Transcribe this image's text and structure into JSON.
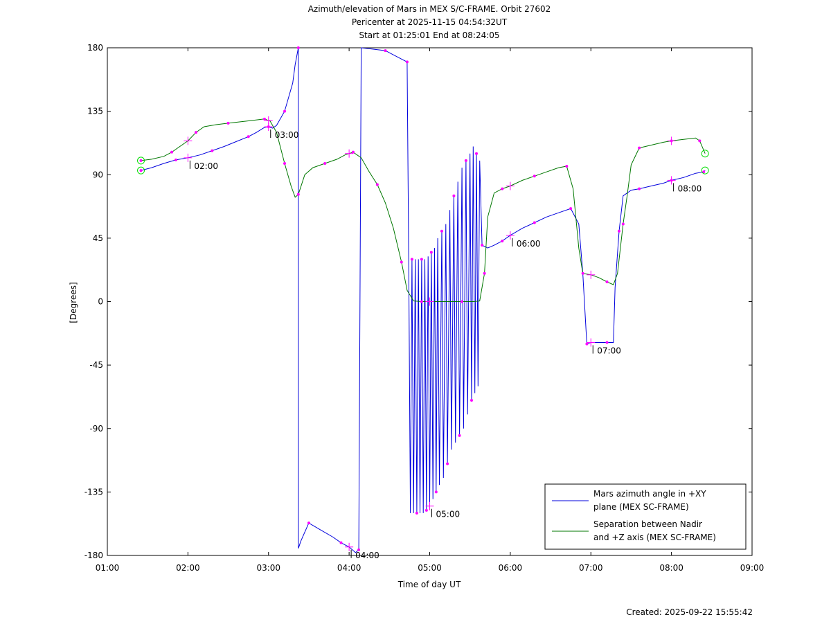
{
  "chart_data": {
    "type": "line",
    "title": [
      "Azimuth/elevation of Mars in MEX S/C-FRAME.  Orbit 27602",
      "Pericenter at 2025-11-15 04:54:32UT",
      "Start at 01:25:01 End at 08:24:05"
    ],
    "xlabel": "Time of day UT",
    "ylabel": "[Degrees]",
    "xlim": [
      1.0,
      9.0
    ],
    "ylim": [
      -180,
      180
    ],
    "x_ticks": [
      "01:00",
      "02:00",
      "03:00",
      "04:00",
      "05:00",
      "06:00",
      "07:00",
      "08:00",
      "09:00"
    ],
    "y_ticks": [
      "180",
      "135",
      "90",
      "45",
      "0",
      "-45",
      "-90",
      "-135",
      "-180"
    ],
    "legend_position": "bottom-right",
    "colors": {
      "azimuth": "#0000dd",
      "separation": "#007700",
      "markers": "#ff00ff",
      "endpoints": "#00dd00"
    },
    "series": [
      {
        "name": "Mars azimuth angle in +XY plane (MEX SC-FRAME)",
        "legend_lines": [
          "Mars azimuth angle in +XY",
          "plane (MEX SC-FRAME)"
        ],
        "points": [
          [
            1.417,
            93
          ],
          [
            1.55,
            95
          ],
          [
            1.7,
            98
          ],
          [
            1.85,
            100.5
          ],
          [
            2.0,
            102
          ],
          [
            2.15,
            104
          ],
          [
            2.3,
            107
          ],
          [
            2.45,
            110
          ],
          [
            2.6,
            113.5
          ],
          [
            2.75,
            117
          ],
          [
            2.85,
            120
          ],
          [
            2.95,
            123.5
          ],
          [
            3.0,
            124
          ],
          [
            3.05,
            123
          ],
          [
            3.1,
            125
          ],
          [
            3.2,
            135
          ],
          [
            3.3,
            155
          ],
          [
            3.33,
            168
          ],
          [
            3.37,
            180
          ],
          [
            3.371,
            -175
          ],
          [
            3.4,
            -170
          ],
          [
            3.5,
            -157
          ],
          [
            3.65,
            -162
          ],
          [
            3.8,
            -167
          ],
          [
            3.9,
            -171
          ],
          [
            4.0,
            -174
          ],
          [
            4.08,
            -178
          ],
          [
            4.12,
            -176
          ],
          [
            4.15,
            180
          ],
          [
            4.3,
            179
          ],
          [
            4.45,
            178
          ],
          [
            4.55,
            175
          ],
          [
            4.65,
            172
          ],
          [
            4.72,
            170
          ],
          [
            4.74,
            30
          ],
          [
            4.76,
            -150
          ],
          [
            4.78,
            30
          ],
          [
            4.8,
            -150
          ],
          [
            4.82,
            30
          ],
          [
            4.84,
            -150
          ],
          [
            4.86,
            30
          ],
          [
            4.88,
            -150
          ],
          [
            4.9,
            30
          ],
          [
            4.92,
            -150
          ],
          [
            4.94,
            30
          ],
          [
            4.96,
            -148
          ],
          [
            4.98,
            32
          ],
          [
            5.0,
            -145
          ],
          [
            5.02,
            35
          ],
          [
            5.04,
            -140
          ],
          [
            5.06,
            38
          ],
          [
            5.08,
            -135
          ],
          [
            5.1,
            45
          ],
          [
            5.12,
            -130
          ],
          [
            5.15,
            50
          ],
          [
            5.17,
            -125
          ],
          [
            5.2,
            55
          ],
          [
            5.22,
            -115
          ],
          [
            5.25,
            65
          ],
          [
            5.27,
            -105
          ],
          [
            5.3,
            75
          ],
          [
            5.32,
            -100
          ],
          [
            5.35,
            85
          ],
          [
            5.37,
            -95
          ],
          [
            5.4,
            95
          ],
          [
            5.42,
            -90
          ],
          [
            5.45,
            100
          ],
          [
            5.47,
            -80
          ],
          [
            5.5,
            105
          ],
          [
            5.52,
            -70
          ],
          [
            5.54,
            110
          ],
          [
            5.56,
            -65
          ],
          [
            5.58,
            105
          ],
          [
            5.6,
            -60
          ],
          [
            5.62,
            100
          ],
          [
            5.65,
            40
          ],
          [
            5.72,
            38
          ],
          [
            5.8,
            40
          ],
          [
            5.9,
            43
          ],
          [
            6.0,
            47
          ],
          [
            6.15,
            52
          ],
          [
            6.3,
            56
          ],
          [
            6.45,
            60
          ],
          [
            6.6,
            63
          ],
          [
            6.75,
            66
          ],
          [
            6.85,
            55
          ],
          [
            6.9,
            20
          ],
          [
            6.95,
            -30
          ],
          [
            7.0,
            -29
          ],
          [
            7.1,
            -29
          ],
          [
            7.2,
            -29
          ],
          [
            7.28,
            -29
          ],
          [
            7.3,
            10
          ],
          [
            7.35,
            50
          ],
          [
            7.4,
            75
          ],
          [
            7.5,
            79
          ],
          [
            7.6,
            80
          ],
          [
            7.75,
            82
          ],
          [
            7.9,
            84
          ],
          [
            8.0,
            86
          ],
          [
            8.15,
            88
          ],
          [
            8.3,
            91
          ],
          [
            8.4,
            92
          ],
          [
            8.417,
            93
          ]
        ]
      },
      {
        "name": "Separation between Nadir and +Z axis (MEX SC-FRAME)",
        "legend_lines": [
          "Separation between Nadir",
          "and +Z axis (MEX SC-FRAME)"
        ],
        "points": [
          [
            1.417,
            100
          ],
          [
            1.55,
            101
          ],
          [
            1.7,
            103
          ],
          [
            1.8,
            106
          ],
          [
            1.9,
            110
          ],
          [
            2.0,
            114
          ],
          [
            2.1,
            120
          ],
          [
            2.2,
            124
          ],
          [
            2.35,
            125.5
          ],
          [
            2.5,
            126.5
          ],
          [
            2.65,
            127.5
          ],
          [
            2.8,
            128.5
          ],
          [
            2.95,
            129.5
          ],
          [
            3.02,
            128
          ],
          [
            3.1,
            120
          ],
          [
            3.2,
            98
          ],
          [
            3.28,
            82
          ],
          [
            3.33,
            74
          ],
          [
            3.37,
            76
          ],
          [
            3.45,
            90
          ],
          [
            3.55,
            95
          ],
          [
            3.7,
            98
          ],
          [
            3.85,
            101
          ],
          [
            3.95,
            104
          ],
          [
            4.05,
            106
          ],
          [
            4.15,
            102
          ],
          [
            4.25,
            92
          ],
          [
            4.35,
            83
          ],
          [
            4.45,
            70
          ],
          [
            4.55,
            52
          ],
          [
            4.65,
            28
          ],
          [
            4.72,
            8
          ],
          [
            4.8,
            0.5
          ],
          [
            4.9,
            0
          ],
          [
            5.0,
            0
          ],
          [
            5.2,
            0
          ],
          [
            5.4,
            0
          ],
          [
            5.55,
            0
          ],
          [
            5.62,
            0.5
          ],
          [
            5.68,
            20
          ],
          [
            5.72,
            60
          ],
          [
            5.8,
            77
          ],
          [
            5.9,
            80
          ],
          [
            6.0,
            82
          ],
          [
            6.15,
            86
          ],
          [
            6.3,
            89
          ],
          [
            6.45,
            92
          ],
          [
            6.6,
            95
          ],
          [
            6.7,
            96
          ],
          [
            6.78,
            80
          ],
          [
            6.85,
            38
          ],
          [
            6.9,
            20
          ],
          [
            7.0,
            19
          ],
          [
            7.1,
            17
          ],
          [
            7.2,
            14
          ],
          [
            7.28,
            12
          ],
          [
            7.33,
            20
          ],
          [
            7.4,
            55
          ],
          [
            7.45,
            75
          ],
          [
            7.5,
            97
          ],
          [
            7.6,
            109
          ],
          [
            7.75,
            111
          ],
          [
            7.9,
            113
          ],
          [
            8.0,
            114
          ],
          [
            8.15,
            115
          ],
          [
            8.3,
            116
          ],
          [
            8.35,
            114
          ],
          [
            8.417,
            105
          ]
        ]
      }
    ],
    "time_labels": [
      {
        "t": 2.0,
        "text": "02:00"
      },
      {
        "t": 3.0,
        "text": "03:00"
      },
      {
        "t": 4.0,
        "text": "04:00"
      },
      {
        "t": 5.0,
        "text": "05:00"
      },
      {
        "t": 6.0,
        "text": "06:00"
      },
      {
        "t": 7.0,
        "text": "07:00"
      },
      {
        "t": 8.0,
        "text": "08:00"
      }
    ]
  },
  "footer": {
    "created": "Created: 2025-09-22 15:55:42"
  }
}
